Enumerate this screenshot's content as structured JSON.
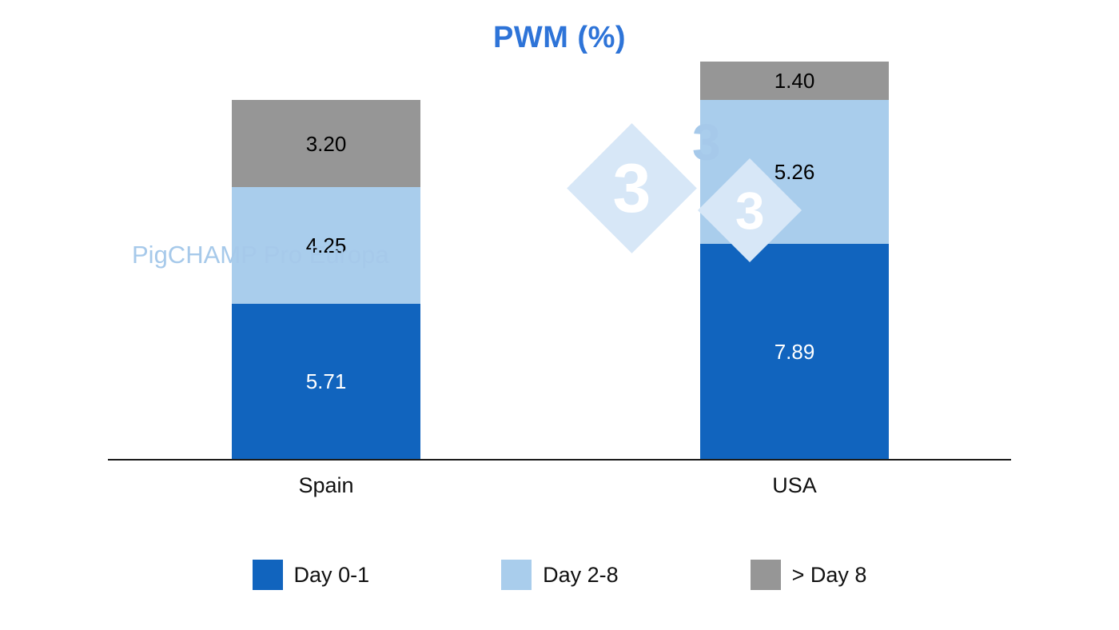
{
  "chart_data": {
    "type": "bar",
    "stacked": true,
    "title": "PWM (%)",
    "categories": [
      "Spain",
      "USA"
    ],
    "series": [
      {
        "name": "Day 0-1",
        "color": "#1164BE",
        "label_color": "#FFFFFF",
        "values": [
          5.71,
          7.89
        ]
      },
      {
        "name": "Day 2-8",
        "color": "#A9CDEC",
        "label_color": "#000000",
        "values": [
          4.25,
          5.26
        ]
      },
      {
        "name": "> Day 8",
        "color": "#969696",
        "label_color": "#000000",
        "values": [
          3.2,
          1.4
        ]
      }
    ],
    "value_format": "0.00",
    "value_labels": "inside-center",
    "legend_position": "bottom",
    "grid": false,
    "axis_line": true,
    "xlabel": "",
    "ylabel": ""
  },
  "watermark": {
    "text": "PigCHAMP Pro Europa",
    "logo_digit": "3"
  },
  "colors": {
    "title": "#2E74D8",
    "axis_line": "#1A1A1A",
    "watermark_text": "#A6C9EA",
    "watermark_diamond": "#D7E7F7"
  }
}
